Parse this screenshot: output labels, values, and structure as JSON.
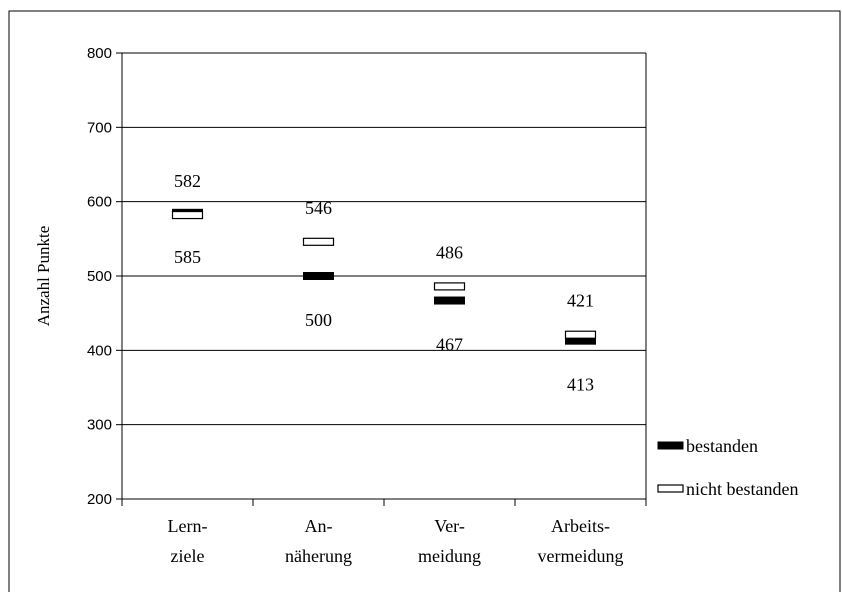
{
  "chart_data": {
    "type": "scatter",
    "categories": [
      "Lern-\nziele",
      "An-\nnäherung",
      "Ver-\nmeidung",
      "Arbeits-\nvermeidung"
    ],
    "ylabel": "Anzahl Punkte",
    "ylim": [
      200,
      800
    ],
    "yticks": [
      200,
      300,
      400,
      500,
      600,
      700,
      800
    ],
    "grid": true,
    "legend_position": "bottom-right",
    "series": [
      {
        "name": "bestanden",
        "values": [
          585,
          500,
          467,
          413
        ],
        "marker": "filled",
        "color": "#000000"
      },
      {
        "name": "nicht bestanden",
        "values": [
          582,
          546,
          486,
          421
        ],
        "marker": "hollow",
        "color": "#ffffff"
      }
    ],
    "data_labels": [
      {
        "category": 0,
        "series": "nicht bestanden",
        "text": "582",
        "placement": "above"
      },
      {
        "category": 0,
        "series": "bestanden",
        "text": "585",
        "placement": "below"
      },
      {
        "category": 1,
        "series": "nicht bestanden",
        "text": "546",
        "placement": "above"
      },
      {
        "category": 1,
        "series": "bestanden",
        "text": "500",
        "placement": "below"
      },
      {
        "category": 2,
        "series": "nicht bestanden",
        "text": "486",
        "placement": "above"
      },
      {
        "category": 2,
        "series": "bestanden",
        "text": "467",
        "placement": "below"
      },
      {
        "category": 3,
        "series": "nicht bestanden",
        "text": "421",
        "placement": "above"
      },
      {
        "category": 3,
        "series": "bestanden",
        "text": "413",
        "placement": "below"
      }
    ]
  }
}
